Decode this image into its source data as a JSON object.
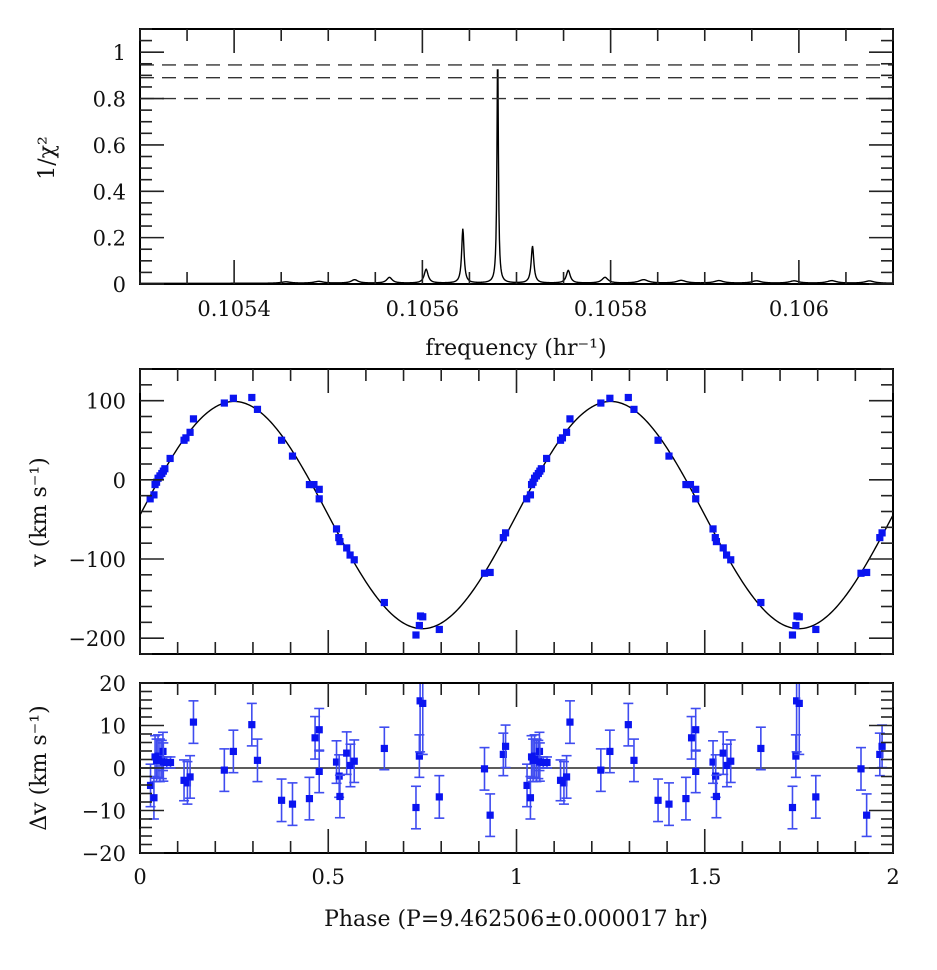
{
  "chart_data": [
    {
      "id": "periodogram",
      "type": "line",
      "xlabel": "frequency (hr⁻¹)",
      "ylabel": "1/χ²",
      "xlim": [
        0.1053,
        0.1061
      ],
      "ylim": [
        0,
        1.1
      ],
      "x_ticks": [
        0.1054,
        0.1056,
        0.1058,
        0.106
      ],
      "x_tick_labels": [
        "0.1054",
        "0.1056",
        "0.1058",
        "0.106"
      ],
      "x_minor_step": 5e-05,
      "y_ticks": [
        0,
        0.2,
        0.4,
        0.6,
        0.8,
        1
      ],
      "y_tick_labels": [
        "0",
        "0.2",
        "0.4",
        "0.6",
        "0.8",
        "1"
      ],
      "y_minor_step": 0.05,
      "threshold_lines": [
        0.945,
        0.89,
        0.8
      ],
      "peaks": [
        {
          "freq": 0.105528,
          "height": 0.015,
          "width": 4.5e-06
        },
        {
          "freq": 0.105565,
          "height": 0.025,
          "width": 3.5e-06
        },
        {
          "freq": 0.105604,
          "height": 0.06,
          "width": 2.5e-06
        },
        {
          "freq": 0.105643,
          "height": 0.235,
          "width": 1.5e-06
        },
        {
          "freq": 0.10568,
          "height": 1.0,
          "width": 9e-07
        },
        {
          "freq": 0.105717,
          "height": 0.16,
          "width": 1.7e-06
        },
        {
          "freq": 0.105755,
          "height": 0.055,
          "width": 2.5e-06
        },
        {
          "freq": 0.105794,
          "height": 0.025,
          "width": 4e-06
        },
        {
          "freq": 0.10549,
          "height": 0.008,
          "width": 6e-06
        },
        {
          "freq": 0.105455,
          "height": 0.006,
          "width": 6e-06
        },
        {
          "freq": 0.105835,
          "height": 0.015,
          "width": 6e-06
        },
        {
          "freq": 0.105875,
          "height": 0.012,
          "width": 6e-06
        },
        {
          "freq": 0.105915,
          "height": 0.011,
          "width": 6e-06
        },
        {
          "freq": 0.105955,
          "height": 0.01,
          "width": 6e-06
        },
        {
          "freq": 0.105995,
          "height": 0.01,
          "width": 6e-06
        },
        {
          "freq": 0.106035,
          "height": 0.011,
          "width": 6e-06
        },
        {
          "freq": 0.106075,
          "height": 0.01,
          "width": 6e-06
        }
      ],
      "baseline": 0.003
    },
    {
      "id": "radial-velocity",
      "type": "scatter",
      "xlabel": "",
      "ylabel": "v (km s⁻¹)",
      "xlim": [
        0,
        2
      ],
      "ylim": [
        -220,
        140
      ],
      "y_ticks": [
        100,
        0,
        -100,
        -200
      ],
      "y_tick_labels": [
        "100",
        "0",
        "−100",
        "−200"
      ],
      "y_minor_step": 20,
      "x_ticks": [
        0,
        0.5,
        1,
        1.5,
        2
      ],
      "x_minor_step": 0.1,
      "fit": {
        "gamma": -44.5,
        "K": 143.5,
        "phase_zero": 0.0
      },
      "marker_color": "#0a14f0",
      "points_phase_0_1": [
        [
          0.027,
          -24
        ],
        [
          0.037,
          -19
        ],
        [
          0.04,
          -6
        ],
        [
          0.044,
          -3
        ],
        [
          0.048,
          2
        ],
        [
          0.053,
          5
        ],
        [
          0.058,
          8
        ],
        [
          0.062,
          11
        ],
        [
          0.066,
          14
        ],
        [
          0.08,
          27
        ],
        [
          0.117,
          50
        ],
        [
          0.122,
          53
        ],
        [
          0.133,
          60
        ],
        [
          0.142,
          77
        ],
        [
          0.224,
          97
        ],
        [
          0.248,
          103
        ],
        [
          0.297,
          104
        ],
        [
          0.312,
          89
        ],
        [
          0.376,
          50
        ],
        [
          0.405,
          30
        ],
        [
          0.45,
          -6
        ],
        [
          0.462,
          -6
        ],
        [
          0.476,
          -12
        ],
        [
          0.476,
          -24
        ],
        [
          0.522,
          -62
        ],
        [
          0.528,
          -73
        ],
        [
          0.531,
          -78
        ],
        [
          0.549,
          -86
        ],
        [
          0.558,
          -95
        ],
        [
          0.569,
          -101
        ],
        [
          0.649,
          -155
        ],
        [
          0.733,
          -196
        ],
        [
          0.742,
          -184
        ],
        [
          0.745,
          -172
        ],
        [
          0.751,
          -173
        ],
        [
          0.795,
          -189
        ],
        [
          0.915,
          -118
        ],
        [
          0.93,
          -117
        ],
        [
          0.965,
          -73
        ],
        [
          0.971,
          -67
        ]
      ]
    },
    {
      "id": "residuals",
      "type": "scatter",
      "xlabel": "Phase (P=9.462506±0.000017 hr)",
      "ylabel": "Δv (km s⁻¹)",
      "xlim": [
        0,
        2
      ],
      "ylim": [
        -20,
        20
      ],
      "x_ticks": [
        0,
        0.5,
        1,
        1.5,
        2
      ],
      "x_tick_labels": [
        "0",
        "0.5",
        "1",
        "1.5",
        "2"
      ],
      "x_minor_step": 0.1,
      "y_ticks": [
        20,
        10,
        0,
        -10,
        -20
      ],
      "y_tick_labels": [
        "20",
        "10",
        "0",
        "−10",
        "−20"
      ],
      "y_minor_step": 2,
      "marker_color": "#0a14f0",
      "errorbar_color": "#3f4cf0",
      "points_phase_0_1": [
        [
          0.028,
          -4.1,
          5.0
        ],
        [
          0.037,
          -7.0,
          5.0
        ],
        [
          0.04,
          2.6,
          5.0
        ],
        [
          0.044,
          1.8,
          5.0
        ],
        [
          0.048,
          2.8,
          5.0
        ],
        [
          0.053,
          1.8,
          5.0
        ],
        [
          0.058,
          2.0,
          4.5
        ],
        [
          0.061,
          3.9,
          4.5
        ],
        [
          0.062,
          1.4,
          4.5
        ],
        [
          0.071,
          1.3,
          1.3
        ],
        [
          0.081,
          1.3,
          1.3
        ],
        [
          0.117,
          -2.9,
          4.8
        ],
        [
          0.126,
          -3.5,
          5.0
        ],
        [
          0.133,
          -2.1,
          5.0
        ],
        [
          0.142,
          10.8,
          5.0
        ],
        [
          0.224,
          -0.5,
          5.0
        ],
        [
          0.248,
          3.9,
          5.0
        ],
        [
          0.297,
          10.2,
          5.0
        ],
        [
          0.312,
          1.8,
          5.0
        ],
        [
          0.376,
          -7.6,
          5.0
        ],
        [
          0.405,
          -8.5,
          5.0
        ],
        [
          0.45,
          -7.2,
          5.0
        ],
        [
          0.465,
          7.1,
          5.0
        ],
        [
          0.476,
          9.0,
          5.0
        ],
        [
          0.476,
          -0.8,
          5.0
        ],
        [
          0.522,
          1.4,
          5.0
        ],
        [
          0.529,
          -1.9,
          5.0
        ],
        [
          0.531,
          -6.7,
          5.0
        ],
        [
          0.549,
          3.5,
          5.0
        ],
        [
          0.559,
          0.6,
          5.0
        ],
        [
          0.569,
          1.6,
          5.0
        ],
        [
          0.649,
          4.6,
          5.0
        ],
        [
          0.733,
          -9.3,
          5.0
        ],
        [
          0.742,
          2.8,
          5.0
        ],
        [
          0.744,
          15.8,
          12.0
        ],
        [
          0.751,
          15.2,
          12.0
        ],
        [
          0.795,
          -6.8,
          5.0
        ],
        [
          0.915,
          -0.2,
          5.0
        ],
        [
          0.93,
          -11.1,
          5.0
        ],
        [
          0.965,
          3.2,
          5.0
        ],
        [
          0.971,
          5.1,
          5.0
        ]
      ]
    }
  ]
}
